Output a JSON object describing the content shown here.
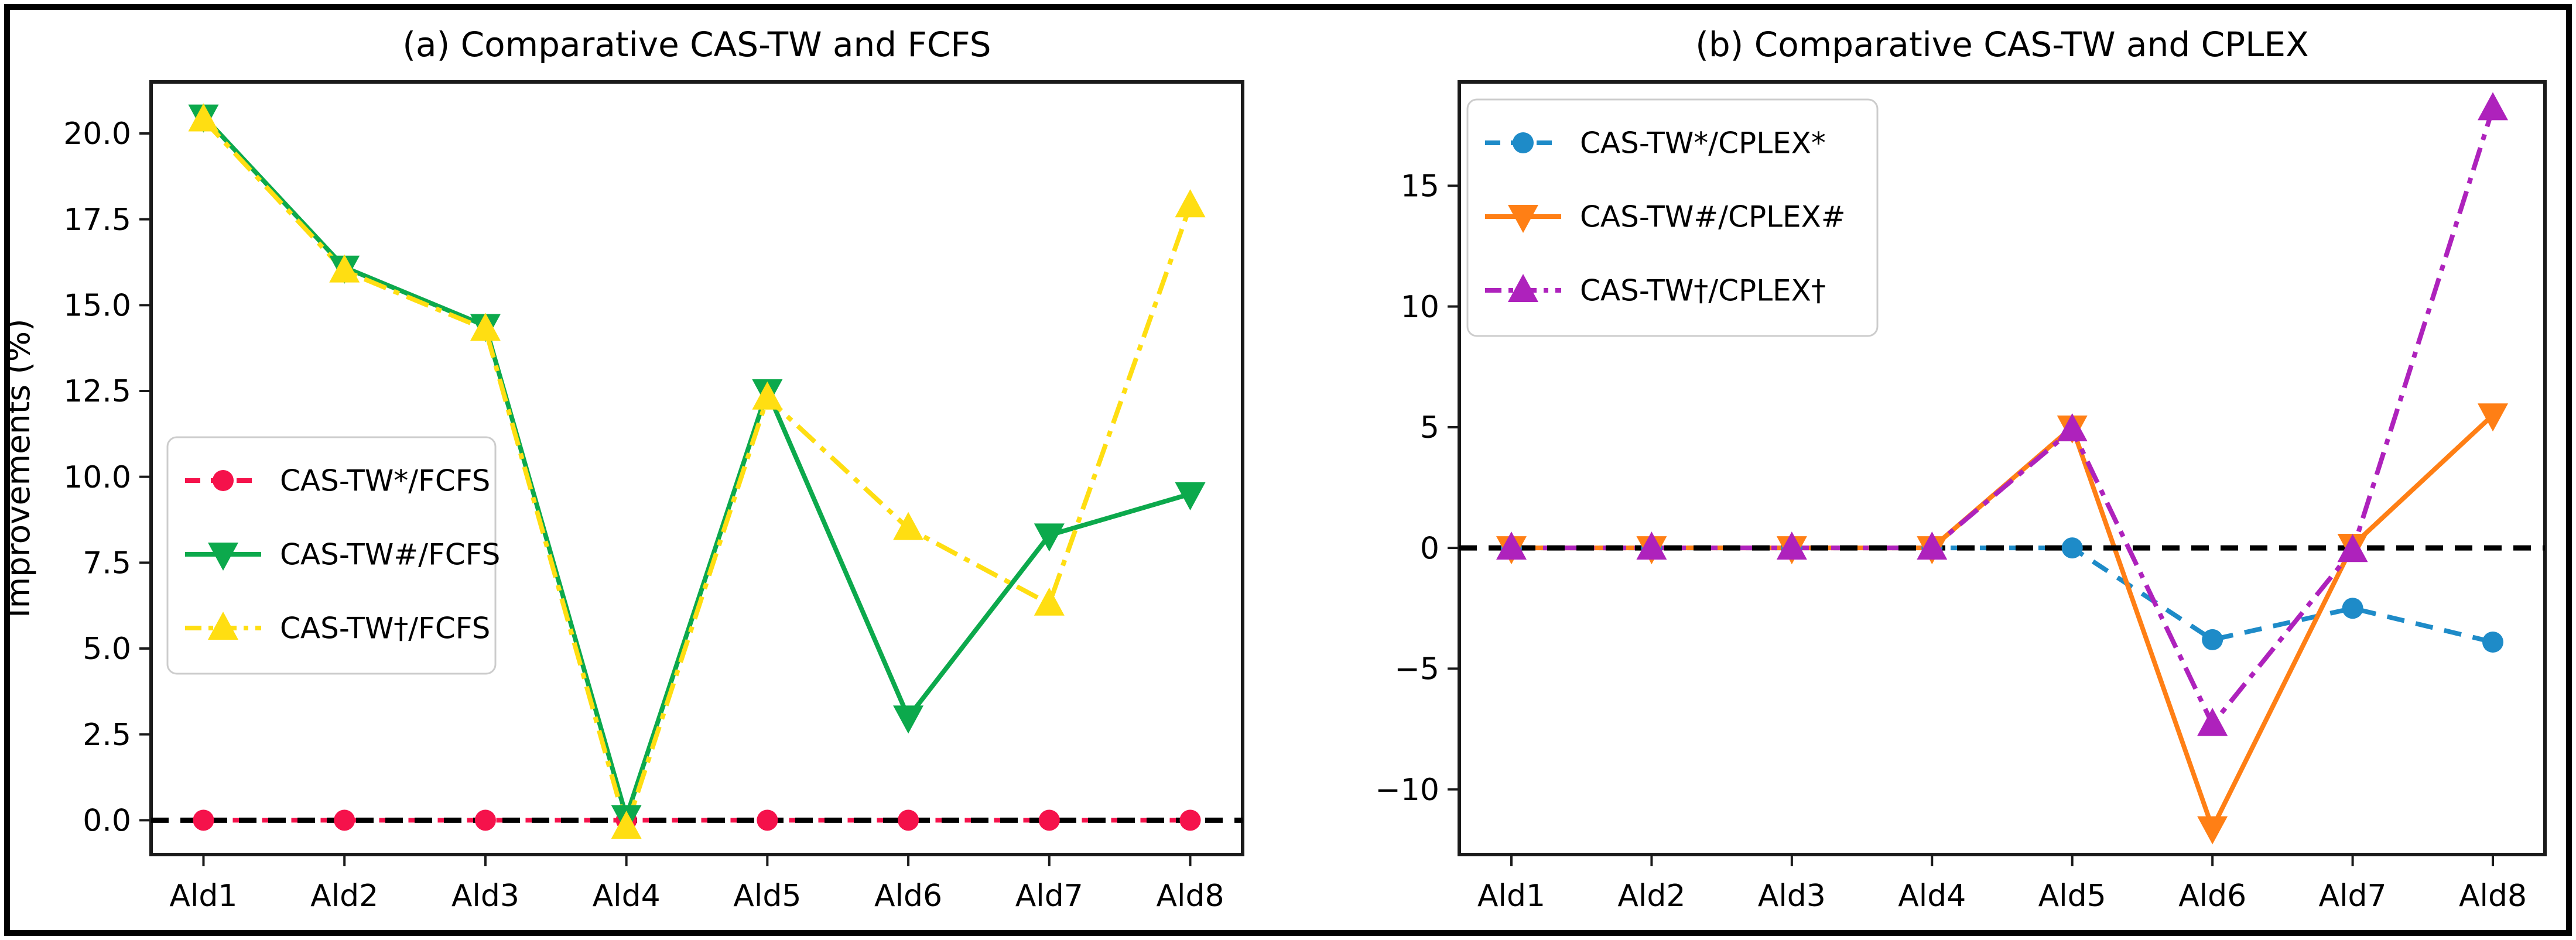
{
  "figure": {
    "background": "#ffffff",
    "border_color": "#000000",
    "spine_color": "#1a1a1a"
  },
  "chart_data": [
    {
      "type": "line",
      "title": "(a) Comparative CAS-TW and FCFS",
      "xlabel": "",
      "ylabel": "Improvements (%)",
      "categories": [
        "Ald1",
        "Ald2",
        "Ald3",
        "Ald4",
        "Ald5",
        "Ald6",
        "Ald7",
        "Ald8"
      ],
      "ylim": [
        -1.0,
        21.5
      ],
      "ytick_values": [
        0.0,
        2.5,
        5.0,
        7.5,
        10.0,
        12.5,
        15.0,
        17.5,
        20.0
      ],
      "ytick_labels": [
        "0.0",
        "2.5",
        "5.0",
        "7.5",
        "10.0",
        "12.5",
        "15.0",
        "17.5",
        "20.0"
      ],
      "grid": "off",
      "legend_position": "center-left",
      "reference_line": {
        "y": 0,
        "color": "#000000",
        "style": "dashed"
      },
      "series": [
        {
          "name": "CAS-TW*/FCFS",
          "color": "#F5124B",
          "linestyle": "dashed",
          "marker": "circle",
          "values": [
            0,
            0,
            0,
            0,
            0,
            0,
            0,
            0
          ]
        },
        {
          "name": "CAS-TW#/FCFS",
          "color": "#0CA94C",
          "linestyle": "solid",
          "marker": "triangle-down",
          "values": [
            20.5,
            16.1,
            14.4,
            0.1,
            12.5,
            3.0,
            8.3,
            9.5
          ]
        },
        {
          "name": "CAS-TW†/FCFS",
          "color": "#FFDE12",
          "linestyle": "dashdot",
          "marker": "triangle-up",
          "values": [
            20.4,
            16.0,
            14.3,
            -0.2,
            12.3,
            8.5,
            6.3,
            17.9
          ]
        }
      ]
    },
    {
      "type": "line",
      "title": "(b) Comparative CAS-TW and CPLEX",
      "xlabel": "",
      "ylabel": "",
      "categories": [
        "Ald1",
        "Ald2",
        "Ald3",
        "Ald4",
        "Ald5",
        "Ald6",
        "Ald7",
        "Ald8"
      ],
      "ylim": [
        -12.7,
        19.3
      ],
      "ytick_values": [
        -10,
        -5,
        0,
        5,
        10,
        15
      ],
      "ytick_labels": [
        "−10",
        "−5",
        "0",
        "5",
        "10",
        "15"
      ],
      "grid": "off",
      "legend_position": "top-left",
      "reference_line": {
        "y": 0,
        "color": "#000000",
        "style": "dashed"
      },
      "series": [
        {
          "name": "CAS-TW*/CPLEX*",
          "color": "#1E8BC8",
          "linestyle": "dashed",
          "marker": "circle",
          "values": [
            0,
            0,
            0,
            0,
            0,
            -3.8,
            -2.5,
            -3.9
          ]
        },
        {
          "name": "CAS-TW#/CPLEX#",
          "color": "#FF7F15",
          "linestyle": "solid",
          "marker": "triangle-down",
          "values": [
            0,
            0,
            0,
            0,
            5.0,
            -11.6,
            0.1,
            5.5
          ]
        },
        {
          "name": "CAS-TW†/CPLEX†",
          "color": "#AE22BC",
          "linestyle": "dashdot",
          "marker": "triangle-up",
          "values": [
            0,
            0,
            0,
            0,
            4.9,
            -7.3,
            -0.1,
            18.2
          ]
        }
      ]
    }
  ]
}
